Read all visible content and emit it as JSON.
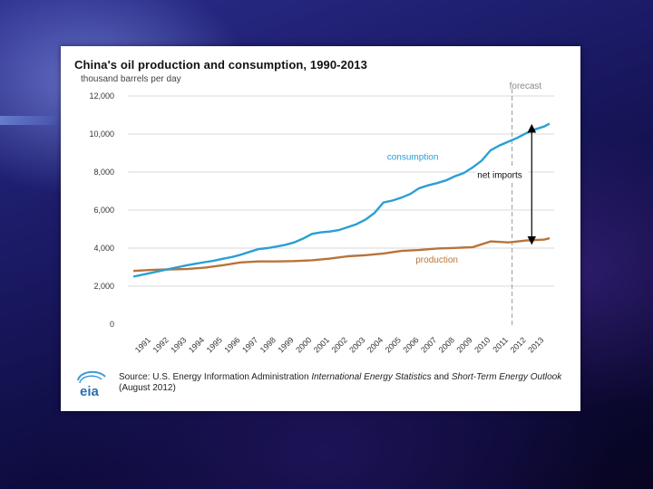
{
  "colors": {
    "consumption": "#2a9fd6",
    "production": "#b8733a",
    "forecast_line": "#9a9a9a",
    "arrow": "#000000"
  },
  "chart_data": {
    "type": "line",
    "title": "China's oil production and consumption, 1990-2013",
    "ylabel": "thousand barrels per day",
    "xlabel": "",
    "ylim": [
      0,
      12000
    ],
    "yticks": [
      0,
      2000,
      4000,
      6000,
      8000,
      10000,
      12000
    ],
    "ytick_labels": [
      "0",
      "2,000",
      "4,000",
      "6,000",
      "8,000",
      "10,000",
      "12,000"
    ],
    "x_start": 1990,
    "x_end": 2013.3,
    "xtick_labels": [
      "1991",
      "1992",
      "1993",
      "1994",
      "1995",
      "1996",
      "1997",
      "1998",
      "1999",
      "2000",
      "2001",
      "2002",
      "2003",
      "2004",
      "2005",
      "2006",
      "2007",
      "2008",
      "2009",
      "2010",
      "2011",
      "2012",
      "2013"
    ],
    "series": [
      {
        "name": "consumption",
        "label": "consumption",
        "x": [
          1990,
          1990.5,
          1991,
          1991.5,
          1992,
          1992.5,
          1993,
          1993.5,
          1994,
          1994.5,
          1995,
          1995.5,
          1996,
          1996.5,
          1997,
          1997.5,
          1998,
          1998.5,
          1999,
          1999.5,
          2000,
          2000.5,
          2001,
          2001.5,
          2002,
          2002.5,
          2003,
          2003.5,
          2004,
          2004.5,
          2005,
          2005.5,
          2006,
          2006.5,
          2007,
          2007.5,
          2008,
          2008.5,
          2009,
          2009.5,
          2010,
          2010.5,
          2011,
          2011.5,
          2012,
          2012.5,
          2013,
          2013.3
        ],
        "values": [
          2500,
          2600,
          2700,
          2800,
          2900,
          3000,
          3100,
          3180,
          3260,
          3340,
          3440,
          3530,
          3650,
          3800,
          3950,
          4000,
          4080,
          4170,
          4300,
          4500,
          4750,
          4830,
          4870,
          4950,
          5100,
          5260,
          5500,
          5850,
          6400,
          6500,
          6650,
          6850,
          7150,
          7300,
          7420,
          7560,
          7780,
          7950,
          8250,
          8600,
          9150,
          9400,
          9600,
          9800,
          10050,
          10250,
          10400,
          10550
        ]
      },
      {
        "name": "production",
        "label": "production",
        "x": [
          1990,
          1991,
          1992,
          1993,
          1994,
          1995,
          1996,
          1997,
          1998,
          1999,
          2000,
          2001,
          2002,
          2003,
          2004,
          2005,
          2006,
          2007,
          2008,
          2009,
          2010,
          2011,
          2012,
          2013,
          2013.3
        ],
        "values": [
          2800,
          2850,
          2880,
          2900,
          2970,
          3100,
          3250,
          3300,
          3300,
          3320,
          3360,
          3450,
          3570,
          3630,
          3720,
          3850,
          3900,
          3980,
          4010,
          4050,
          4350,
          4300,
          4400,
          4450,
          4520
        ]
      }
    ],
    "annotations": {
      "forecast": "forecast",
      "forecast_x": 2011.2,
      "net_imports": "net imports",
      "net_imports_x": 2012.3,
      "net_imports_top": 10300,
      "net_imports_bottom": 4400
    }
  },
  "source": {
    "prefix": "Source: U.S. Energy Information Administration ",
    "italic1": "International Energy Statistics",
    "middle": " and ",
    "italic2": "Short-Term Energy Outlook",
    "suffix": " (August 2012)",
    "logo_text": "eia"
  }
}
